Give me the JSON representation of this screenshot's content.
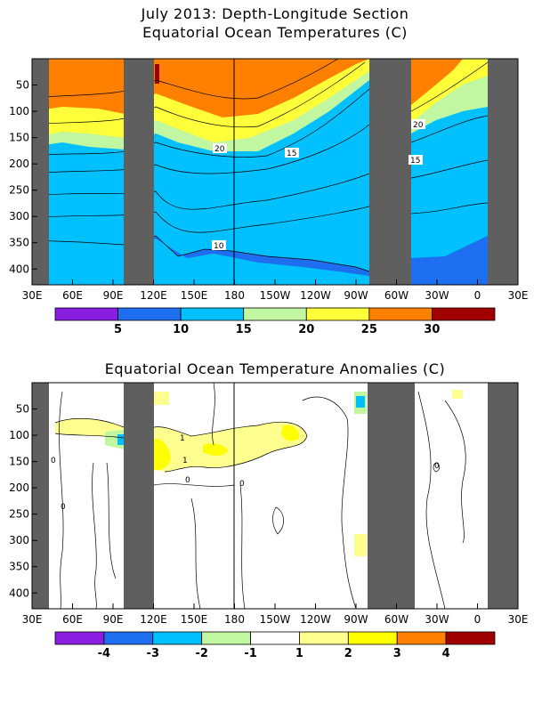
{
  "titles": {
    "main_line1": "July 2013: Depth-Longitude Section",
    "main_line2": "Equatorial Ocean Temperatures (C)",
    "anom": "Equatorial Ocean Temperature Anomalies (C)"
  },
  "chart_data": [
    {
      "type": "heatmap",
      "title": "July 2013: Depth-Longitude Section / Equatorial Ocean Temperatures (C)",
      "x_tick_labels": [
        "30E",
        "60E",
        "90E",
        "120E",
        "150E",
        "180",
        "150W",
        "120W",
        "90W",
        "60W",
        "30W",
        "0",
        "30E"
      ],
      "y_tick_labels": [
        "50",
        "100",
        "150",
        "200",
        "250",
        "300",
        "350",
        "400"
      ],
      "y_ticks": [
        50,
        100,
        150,
        200,
        250,
        300,
        350,
        400
      ],
      "ylim": [
        0,
        430
      ],
      "colorbar": {
        "labels": [
          "5",
          "10",
          "15",
          "20",
          "25",
          "30"
        ],
        "colors": [
          "#8a1ee0",
          "#1e6ef0",
          "#00c0ff",
          "#c0f7a0",
          "#ffff3a",
          "#ff8000",
          "#a00000"
        ]
      },
      "contour_labels": [
        "20",
        "15",
        "10",
        "20",
        "15"
      ]
    },
    {
      "type": "heatmap",
      "title": "Equatorial Ocean Temperature Anomalies (C)",
      "x_tick_labels": [
        "30E",
        "60E",
        "90E",
        "120E",
        "150E",
        "180",
        "150W",
        "120W",
        "90W",
        "60W",
        "30W",
        "0",
        "30E"
      ],
      "y_tick_labels": [
        "50",
        "100",
        "150",
        "200",
        "250",
        "300",
        "350",
        "400"
      ],
      "y_ticks": [
        50,
        100,
        150,
        200,
        250,
        300,
        350,
        400
      ],
      "ylim": [
        0,
        430
      ],
      "colorbar": {
        "labels": [
          "-4",
          "-3",
          "-2",
          "-1",
          "1",
          "2",
          "3",
          "4"
        ],
        "colors": [
          "#8a1ee0",
          "#1e6ef0",
          "#00c0ff",
          "#c0f7a0",
          "#ffffff",
          "#ffff90",
          "#ffff00",
          "#ff8000",
          "#a00000"
        ]
      },
      "contour_labels": [
        "1",
        "1",
        "0",
        "0",
        "0",
        "0",
        "0"
      ]
    }
  ],
  "colors": {
    "land": "#5f5f5f",
    "orange": "#ff8000",
    "yellow": "#ffff3a",
    "cyan": "#00c0ff",
    "blue": "#1e6ef0"
  }
}
